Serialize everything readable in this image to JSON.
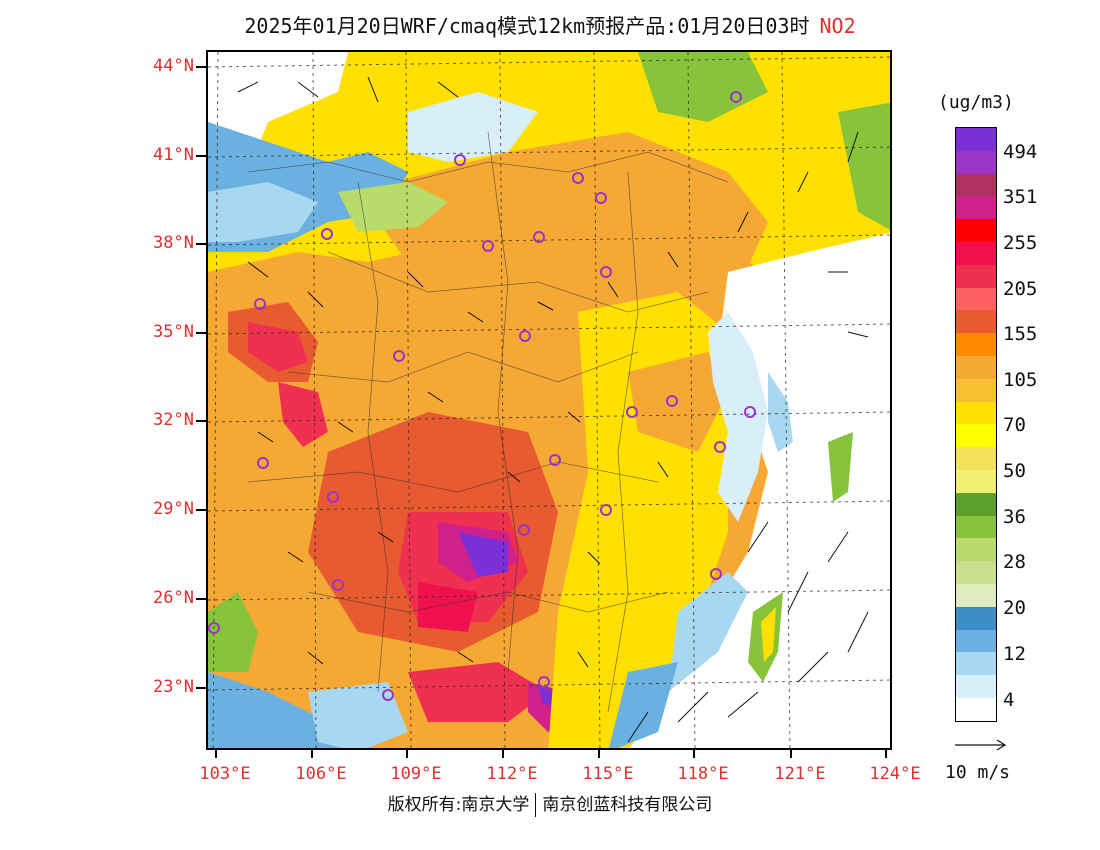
{
  "title": {
    "text": "2025年01月20日WRF/cmaq模式12km预报产品:01月20日03时",
    "pollutant": "NO2"
  },
  "map": {
    "lat_labels": [
      "44°N",
      "41°N",
      "38°N",
      "35°N",
      "32°N",
      "29°N",
      "26°N",
      "23°N"
    ],
    "lon_labels": [
      "103°E",
      "106°E",
      "109°E",
      "112°E",
      "115°E",
      "118°E",
      "121°E",
      "124°E"
    ]
  },
  "legend": {
    "unit": "(ug/m3)",
    "labels": [
      "494",
      "351",
      "255",
      "205",
      "155",
      "105",
      "70",
      "50",
      "36",
      "28",
      "20",
      "12",
      "4"
    ],
    "colors": [
      "#7b2fd6",
      "#9a35c8",
      "#b03060",
      "#d0208a",
      "#ff0000",
      "#f0104e",
      "#f03050",
      "#ff6060",
      "#e85a30",
      "#ff8a00",
      "#f6a834",
      "#f6c030",
      "#ffe000",
      "#ffff00",
      "#f5e05a",
      "#f0f070",
      "#5aa02a",
      "#88c43a",
      "#b8dc6a",
      "#c8e090",
      "#e0ecc0",
      "#3c8cc8",
      "#6ab0e0",
      "#a8d8f0",
      "#d8eef8",
      "#ffffff"
    ],
    "wind_ref_label": "10 m/s"
  },
  "copyright": {
    "left": "版权所有:南京大学",
    "right": "南京创蓝科技有限公司"
  }
}
